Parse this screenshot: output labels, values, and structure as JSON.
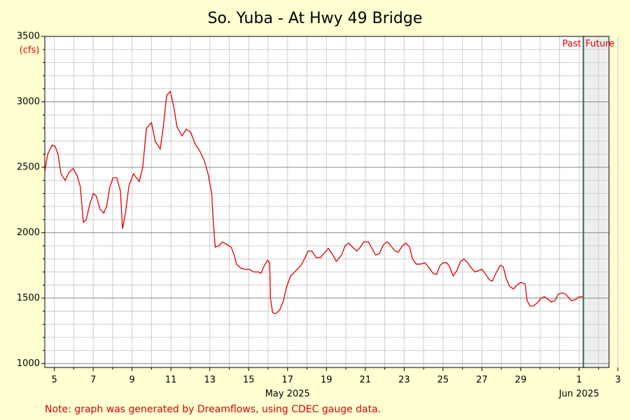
{
  "chart_data": {
    "type": "line",
    "title": "So. Yuba - At Hwy 49 Bridge",
    "y_unit": "(cfs)",
    "note": "Note: graph was generated by Dreamflows, using CDEC gauge data.",
    "past_label": "Past",
    "future_label": "Future",
    "now": 32.22,
    "xlim": [
      4.51,
      33.54
    ],
    "ylim": [
      970,
      3500
    ],
    "xticks": [
      5,
      7,
      9,
      11,
      13,
      15,
      17,
      19,
      21,
      23,
      25,
      27,
      29,
      {
        "value": 32,
        "label": "1"
      },
      {
        "value": 34,
        "label": "3"
      }
    ],
    "xminor": [
      6,
      8,
      10,
      12,
      14,
      16,
      18,
      20,
      22,
      24,
      26,
      28,
      30,
      31,
      33
    ],
    "month_labels": [
      {
        "value": 17,
        "label": "May 2025"
      },
      {
        "value": 32,
        "label": "Jun 2025"
      }
    ],
    "yticks": [
      1000,
      1500,
      2000,
      2500,
      3000,
      3500
    ],
    "yminor": [
      1100,
      1200,
      1300,
      1400,
      1600,
      1700,
      1800,
      1900,
      2100,
      2200,
      2300,
      2400,
      2600,
      2700,
      2800,
      2900,
      3100,
      3200,
      3300,
      3400
    ],
    "grid": true,
    "series": [
      {
        "name": "So. Yuba - At Hwy 49 Bridge",
        "color": "#dd0000",
        "x": [
          4.51,
          4.66,
          4.89,
          5.04,
          5.19,
          5.34,
          5.56,
          5.75,
          5.97,
          6.16,
          6.34,
          6.49,
          6.64,
          6.83,
          7.01,
          7.16,
          7.35,
          7.54,
          7.69,
          7.84,
          8.02,
          8.21,
          8.4,
          8.51,
          8.66,
          8.84,
          9.07,
          9.22,
          9.37,
          9.55,
          9.74,
          10.0,
          10.19,
          10.45,
          10.6,
          10.78,
          10.97,
          11.16,
          11.31,
          11.57,
          11.79,
          12.01,
          12.24,
          12.5,
          12.72,
          12.91,
          13.1,
          13.17,
          13.28,
          13.47,
          13.66,
          13.88,
          14.1,
          14.25,
          14.37,
          14.59,
          14.81,
          15.04,
          15.26,
          15.49,
          15.63,
          15.78,
          15.97,
          16.08,
          16.12,
          16.23,
          16.38,
          16.6,
          16.79,
          16.94,
          17.16,
          17.43,
          17.69,
          17.87,
          18.06,
          18.25,
          18.47,
          18.69,
          18.92,
          19.1,
          19.29,
          19.51,
          19.78,
          19.96,
          20.15,
          20.34,
          20.56,
          20.75,
          20.93,
          21.16,
          21.34,
          21.53,
          21.72,
          21.94,
          22.13,
          22.31,
          22.54,
          22.69,
          22.91,
          23.1,
          23.28,
          23.43,
          23.62,
          23.84,
          24.07,
          24.29,
          24.48,
          24.66,
          24.85,
          25.0,
          25.19,
          25.34,
          25.52,
          25.71,
          25.9,
          26.08,
          26.27,
          26.46,
          26.64,
          26.83,
          27.01,
          27.2,
          27.39,
          27.54,
          27.72,
          27.95,
          28.1,
          28.25,
          28.43,
          28.62,
          28.81,
          28.99,
          29.22,
          29.33,
          29.48,
          29.66,
          29.89,
          30.04,
          30.22,
          30.41,
          30.56,
          30.75,
          30.93,
          31.12,
          31.31,
          31.49,
          31.6,
          31.83,
          32.01,
          32.2
        ],
        "values": [
          2470,
          2600,
          2670,
          2660,
          2600,
          2450,
          2400,
          2460,
          2490,
          2440,
          2350,
          2080,
          2100,
          2220,
          2300,
          2280,
          2180,
          2150,
          2200,
          2340,
          2420,
          2420,
          2320,
          2030,
          2150,
          2360,
          2450,
          2420,
          2390,
          2500,
          2800,
          2840,
          2700,
          2640,
          2800,
          3050,
          3080,
          2950,
          2810,
          2740,
          2790,
          2770,
          2680,
          2620,
          2550,
          2450,
          2300,
          2100,
          1890,
          1900,
          1930,
          1910,
          1890,
          1830,
          1760,
          1730,
          1720,
          1720,
          1700,
          1700,
          1690,
          1740,
          1790,
          1770,
          1500,
          1390,
          1380,
          1410,
          1480,
          1580,
          1670,
          1710,
          1750,
          1800,
          1860,
          1860,
          1810,
          1810,
          1850,
          1880,
          1840,
          1780,
          1830,
          1900,
          1920,
          1890,
          1860,
          1890,
          1930,
          1930,
          1880,
          1830,
          1840,
          1910,
          1930,
          1900,
          1860,
          1850,
          1900,
          1920,
          1890,
          1800,
          1760,
          1760,
          1770,
          1730,
          1690,
          1680,
          1750,
          1770,
          1770,
          1740,
          1670,
          1710,
          1780,
          1800,
          1770,
          1730,
          1700,
          1710,
          1720,
          1680,
          1640,
          1630,
          1690,
          1750,
          1740,
          1650,
          1590,
          1570,
          1600,
          1620,
          1610,
          1480,
          1440,
          1440,
          1470,
          1500,
          1510,
          1490,
          1470,
          1480,
          1530,
          1540,
          1530,
          1500,
          1480,
          1490,
          1510,
          1510
        ]
      }
    ]
  }
}
